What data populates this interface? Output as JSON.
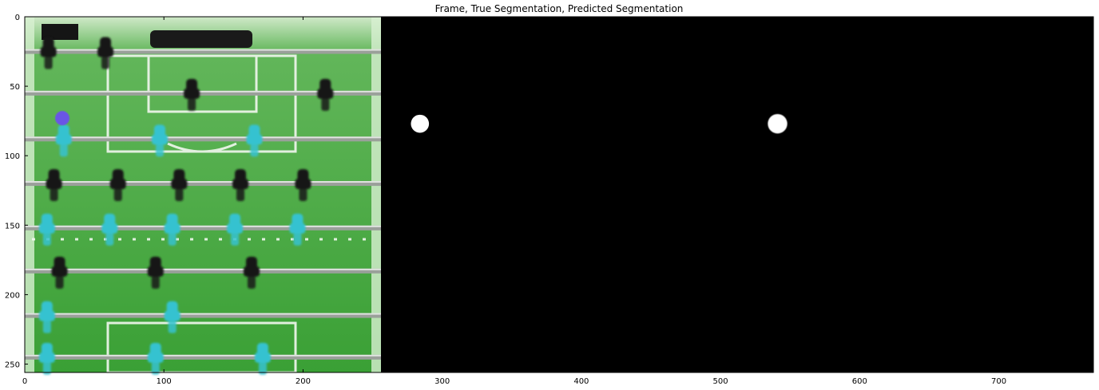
{
  "title": "Frame, True Segmentation, Predicted Segmentation",
  "image": {
    "x_range": [
      0,
      768
    ],
    "y_range": [
      256,
      0
    ],
    "panels": [
      "frame",
      "true-segmentation",
      "predicted-segmentation"
    ],
    "true_ball_center": [
      284,
      77
    ],
    "true_ball_radius": 6.5,
    "predicted_ball_center": [
      541,
      77
    ],
    "predicted_ball_radius": 7
  },
  "axes": {
    "x_ticks": [
      0,
      100,
      200,
      300,
      400,
      500,
      600,
      700
    ],
    "x_tick_labels": [
      "0",
      "100",
      "200",
      "300",
      "400",
      "500",
      "600",
      "700"
    ],
    "y_ticks": [
      0,
      50,
      100,
      150,
      200,
      250
    ],
    "y_tick_labels": [
      "0",
      "50",
      "100",
      "150",
      "200",
      "250"
    ]
  },
  "colors": {
    "field": "#3ea33a",
    "field_light": "#a8dca0",
    "rod": "#9aa09a",
    "team_a": "#36c2d0",
    "team_b": "#151515",
    "ball": "#6a55e6",
    "mask": "#000000",
    "segment": "#ffffff"
  },
  "players": [
    {
      "row": 25,
      "cols": [
        17,
        58
      ],
      "team": "b"
    },
    {
      "row": 55,
      "cols": [
        120,
        216
      ],
      "team": "b"
    },
    {
      "row": 88,
      "cols": [
        28,
        97,
        165
      ],
      "team": "a"
    },
    {
      "row": 120,
      "cols": [
        21,
        67,
        111,
        155,
        200
      ],
      "team": "b"
    },
    {
      "row": 152,
      "cols": [
        16,
        61,
        106,
        151,
        196
      ],
      "team": "a"
    },
    {
      "row": 183,
      "cols": [
        25,
        94,
        163
      ],
      "team": "b"
    },
    {
      "row": 215,
      "cols": [
        16,
        106
      ],
      "team": "a"
    },
    {
      "row": 245,
      "cols": [
        16,
        94,
        171
      ],
      "team": "a"
    }
  ]
}
